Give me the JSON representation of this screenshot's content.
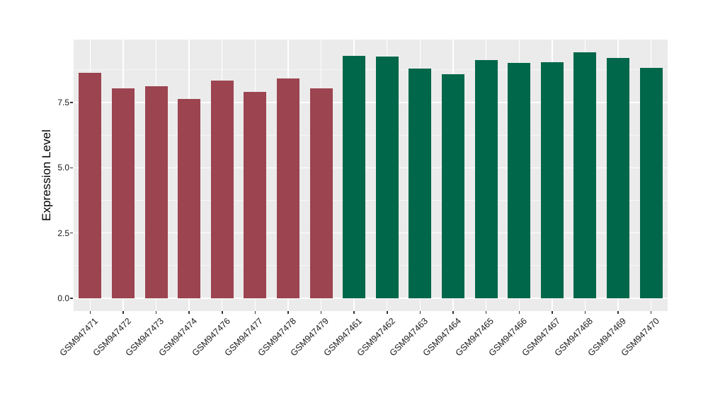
{
  "chart_data": {
    "type": "bar",
    "title": "",
    "xlabel": "",
    "ylabel": "Expression Level",
    "ylim": [
      0,
      9.9
    ],
    "grid": "on",
    "legend_position": "none",
    "panel_background": "#EBEBEB",
    "gridline_color": "#FFFFFF",
    "tick_color": "#333333",
    "axis_text_color": "#1A1A1A",
    "yticks": [
      {
        "value": 0.0,
        "label": "0.0"
      },
      {
        "value": 2.5,
        "label": "2.5"
      },
      {
        "value": 5.0,
        "label": "5.0"
      },
      {
        "value": 7.5,
        "label": "7.5"
      }
    ],
    "minor_gridlines": [
      1.25,
      3.75,
      6.25,
      8.75
    ],
    "bar_colors": {
      "maroon_group": "#9C4450",
      "green_group": "#00674A"
    },
    "bars": [
      {
        "label": "GSM947471",
        "value": 8.63,
        "color": "#9C4450"
      },
      {
        "label": "GSM947472",
        "value": 8.05,
        "color": "#9C4450"
      },
      {
        "label": "GSM947473",
        "value": 8.11,
        "color": "#9C4450"
      },
      {
        "label": "GSM947474",
        "value": 7.62,
        "color": "#9C4450"
      },
      {
        "label": "GSM947476",
        "value": 8.33,
        "color": "#9C4450"
      },
      {
        "label": "GSM947477",
        "value": 7.91,
        "color": "#9C4450"
      },
      {
        "label": "GSM947478",
        "value": 8.41,
        "color": "#9C4450"
      },
      {
        "label": "GSM947479",
        "value": 8.04,
        "color": "#9C4450"
      },
      {
        "label": "GSM947461",
        "value": 9.27,
        "color": "#00674A"
      },
      {
        "label": "GSM947462",
        "value": 9.25,
        "color": "#00674A"
      },
      {
        "label": "GSM947463",
        "value": 8.8,
        "color": "#00674A"
      },
      {
        "label": "GSM947464",
        "value": 8.58,
        "color": "#00674A"
      },
      {
        "label": "GSM947465",
        "value": 9.13,
        "color": "#00674A"
      },
      {
        "label": "GSM947466",
        "value": 9.01,
        "color": "#00674A"
      },
      {
        "label": "GSM947467",
        "value": 9.04,
        "color": "#00674A"
      },
      {
        "label": "GSM947468",
        "value": 9.43,
        "color": "#00674A"
      },
      {
        "label": "GSM947469",
        "value": 9.21,
        "color": "#00674A"
      },
      {
        "label": "GSM947470",
        "value": 8.83,
        "color": "#00674A"
      }
    ]
  }
}
